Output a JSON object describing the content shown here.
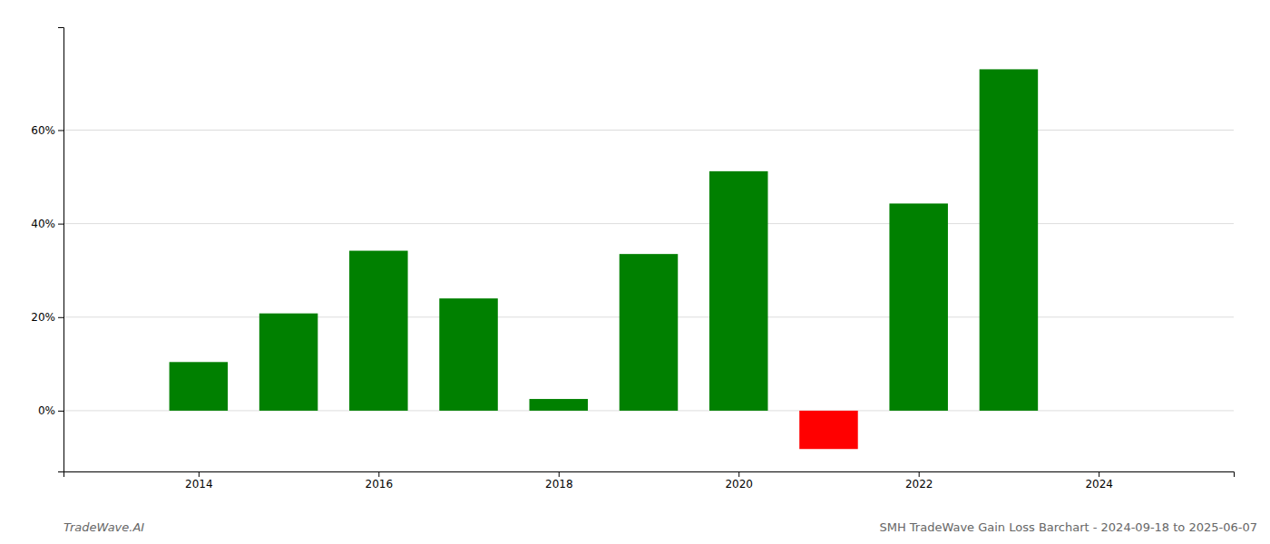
{
  "chart_data": {
    "type": "bar",
    "x": [
      2014,
      2015,
      2016,
      2017,
      2018,
      2019,
      2020,
      2021,
      2022,
      2023
    ],
    "values": [
      0.104,
      0.208,
      0.342,
      0.24,
      0.025,
      0.335,
      0.512,
      -0.082,
      0.443,
      0.73
    ],
    "colors": [
      "#008000",
      "#008000",
      "#008000",
      "#008000",
      "#008000",
      "#008000",
      "#008000",
      "#ff0000",
      "#008000",
      "#008000"
    ],
    "xlim": [
      2012.5,
      2025.5
    ],
    "xticks": [
      2014,
      2016,
      2018,
      2020,
      2022,
      2024
    ],
    "ylim": [
      -0.13,
      0.82
    ],
    "yticks": [
      {
        "value": 0.0,
        "label": "0%"
      },
      {
        "value": 0.2,
        "label": "20%"
      },
      {
        "value": 0.4,
        "label": "40%"
      },
      {
        "value": 0.6,
        "label": "60%"
      }
    ],
    "grid": true,
    "annotations": [
      "TradeWave.AI",
      "SMH TradeWave Gain Loss Barchart - 2024-09-18 to 2025-06-07"
    ]
  }
}
